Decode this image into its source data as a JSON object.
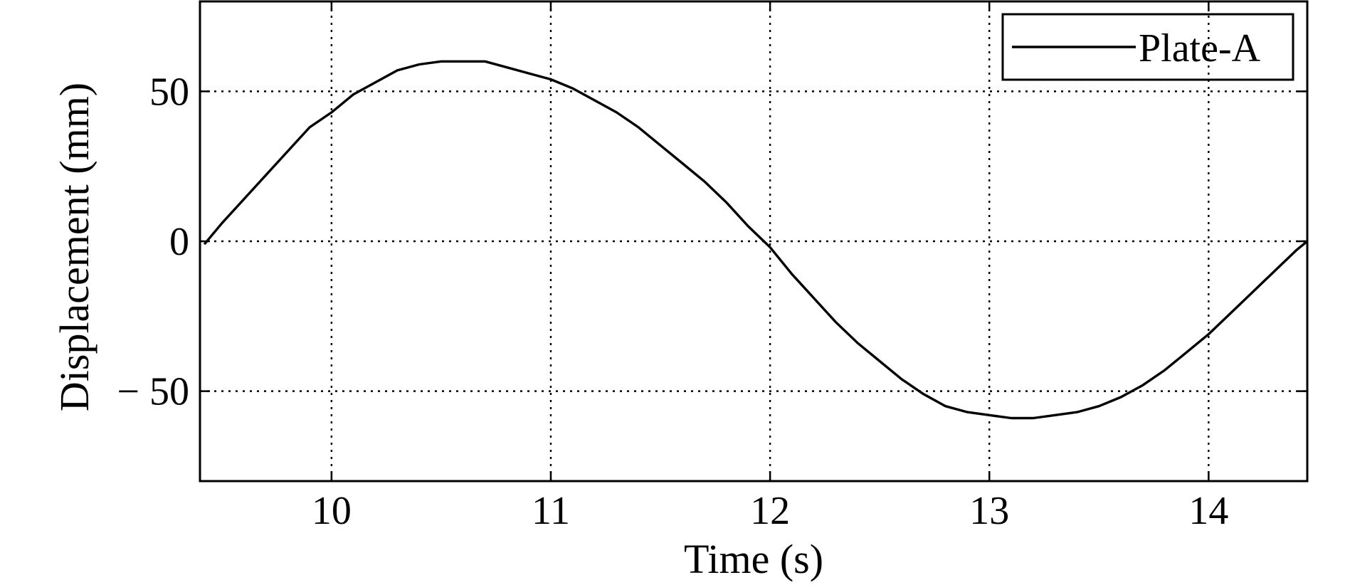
{
  "chart_data": {
    "type": "line",
    "title": "",
    "xlabel": "Time (s)",
    "ylabel": "Displacement (mm)",
    "xlim": [
      9.4,
      14.45
    ],
    "ylim": [
      -80,
      80
    ],
    "xticks": [
      10,
      11,
      12,
      13,
      14
    ],
    "xtick_labels": [
      "10",
      "11",
      "12",
      "13",
      "14"
    ],
    "yticks": [
      50,
      0,
      -50
    ],
    "ytick_labels": [
      "50",
      "0",
      "− 50"
    ],
    "grid": true,
    "legend_position": "top-right",
    "series": [
      {
        "name": "Plate-A",
        "color": "#000000",
        "x": [
          9.42,
          9.5,
          9.6,
          9.7,
          9.8,
          9.9,
          10.0,
          10.1,
          10.2,
          10.3,
          10.4,
          10.5,
          10.6,
          10.7,
          10.8,
          10.9,
          11.0,
          11.1,
          11.2,
          11.3,
          11.4,
          11.5,
          11.6,
          11.7,
          11.8,
          11.9,
          12.0,
          12.1,
          12.2,
          12.3,
          12.4,
          12.5,
          12.6,
          12.7,
          12.8,
          12.9,
          13.0,
          13.1,
          13.2,
          13.3,
          13.4,
          13.5,
          13.6,
          13.7,
          13.8,
          13.9,
          14.0,
          14.1,
          14.2,
          14.3,
          14.4,
          14.45
        ],
        "y": [
          -1,
          6,
          14,
          22,
          30,
          38,
          43,
          49,
          53,
          57,
          59,
          60,
          60,
          60,
          58,
          56,
          54,
          51,
          47,
          43,
          38,
          32,
          26,
          20,
          13,
          5,
          -2,
          -11,
          -19,
          -27,
          -34,
          -40,
          -46,
          -51,
          -55,
          -57,
          -58,
          -59,
          -59,
          -58,
          -57,
          -55,
          -52,
          -48,
          -43,
          -37,
          -31,
          -24,
          -17,
          -10,
          -3,
          0
        ]
      }
    ]
  }
}
